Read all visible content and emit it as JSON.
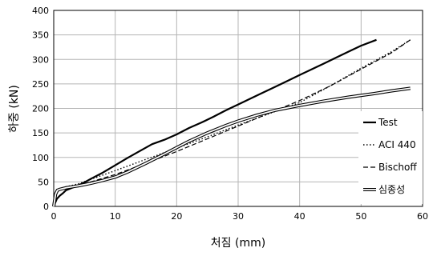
{
  "chart_data": {
    "type": "line",
    "xlabel": "처짐 (mm)",
    "ylabel": "하중 (kN)",
    "xlim": [
      0,
      60
    ],
    "ylim": [
      0,
      400
    ],
    "x_ticks": [
      "0",
      "10",
      "20",
      "30",
      "40",
      "50",
      "60"
    ],
    "y_ticks": [
      "0",
      "50",
      "100",
      "150",
      "200",
      "250",
      "300",
      "350",
      "400"
    ],
    "grid": true,
    "legend_position": "right",
    "series": [
      {
        "name": "Test",
        "style": "solid-thick",
        "color": "#000000",
        "points": [
          [
            0,
            0
          ],
          [
            0.5,
            15
          ],
          [
            1,
            22
          ],
          [
            1.5,
            27
          ],
          [
            2,
            33
          ],
          [
            3,
            38
          ],
          [
            4,
            43
          ],
          [
            5,
            49
          ],
          [
            6,
            56
          ],
          [
            8,
            69
          ],
          [
            10,
            84
          ],
          [
            12,
            99
          ],
          [
            14,
            113
          ],
          [
            16,
            127
          ],
          [
            18,
            136
          ],
          [
            20,
            147
          ],
          [
            22,
            160
          ],
          [
            24,
            171
          ],
          [
            26,
            183
          ],
          [
            28,
            196
          ],
          [
            30,
            208
          ],
          [
            32,
            220
          ],
          [
            34,
            232
          ],
          [
            36,
            244
          ],
          [
            38,
            256
          ],
          [
            40,
            268
          ],
          [
            42,
            280
          ],
          [
            44,
            292
          ],
          [
            46,
            304
          ],
          [
            48,
            316
          ],
          [
            50,
            328
          ],
          [
            52.5,
            340
          ]
        ]
      },
      {
        "name": "ACI 440",
        "style": "dotted",
        "color": "#000000",
        "points": [
          [
            0,
            0
          ],
          [
            0.3,
            25
          ],
          [
            0.6,
            33
          ],
          [
            1,
            36
          ],
          [
            2,
            40
          ],
          [
            4,
            46
          ],
          [
            6,
            55
          ],
          [
            10,
            73
          ],
          [
            15,
            96
          ],
          [
            20,
            119
          ],
          [
            25,
            142
          ],
          [
            30,
            166
          ],
          [
            35,
            189
          ],
          [
            40,
            212
          ],
          [
            45,
            246
          ],
          [
            50,
            282
          ],
          [
            55,
            316
          ],
          [
            58,
            340
          ]
        ]
      },
      {
        "name": "Bischoff",
        "style": "dashed",
        "color": "#000000",
        "points": [
          [
            0,
            0
          ],
          [
            0.3,
            25
          ],
          [
            0.6,
            33
          ],
          [
            1,
            36
          ],
          [
            2,
            39
          ],
          [
            4,
            43
          ],
          [
            6,
            50
          ],
          [
            10,
            65
          ],
          [
            15,
            88
          ],
          [
            20,
            112
          ],
          [
            25,
            138
          ],
          [
            30,
            164
          ],
          [
            35,
            190
          ],
          [
            40,
            216
          ],
          [
            45,
            246
          ],
          [
            50,
            280
          ],
          [
            55,
            314
          ],
          [
            58,
            340
          ]
        ]
      },
      {
        "name": "심종성",
        "style": "double",
        "color": "#000000",
        "points": [
          [
            0,
            0
          ],
          [
            0.3,
            25
          ],
          [
            0.6,
            33
          ],
          [
            1,
            35
          ],
          [
            2,
            38
          ],
          [
            4,
            42
          ],
          [
            6,
            47
          ],
          [
            8,
            53
          ],
          [
            10,
            60
          ],
          [
            12,
            70
          ],
          [
            15,
            88
          ],
          [
            18,
            107
          ],
          [
            20,
            120
          ],
          [
            22,
            133
          ],
          [
            25,
            150
          ],
          [
            28,
            165
          ],
          [
            30,
            174
          ],
          [
            33,
            186
          ],
          [
            36,
            196
          ],
          [
            40,
            206
          ],
          [
            44,
            215
          ],
          [
            48,
            223
          ],
          [
            52,
            230
          ],
          [
            55,
            236
          ],
          [
            58,
            241
          ]
        ]
      }
    ]
  }
}
